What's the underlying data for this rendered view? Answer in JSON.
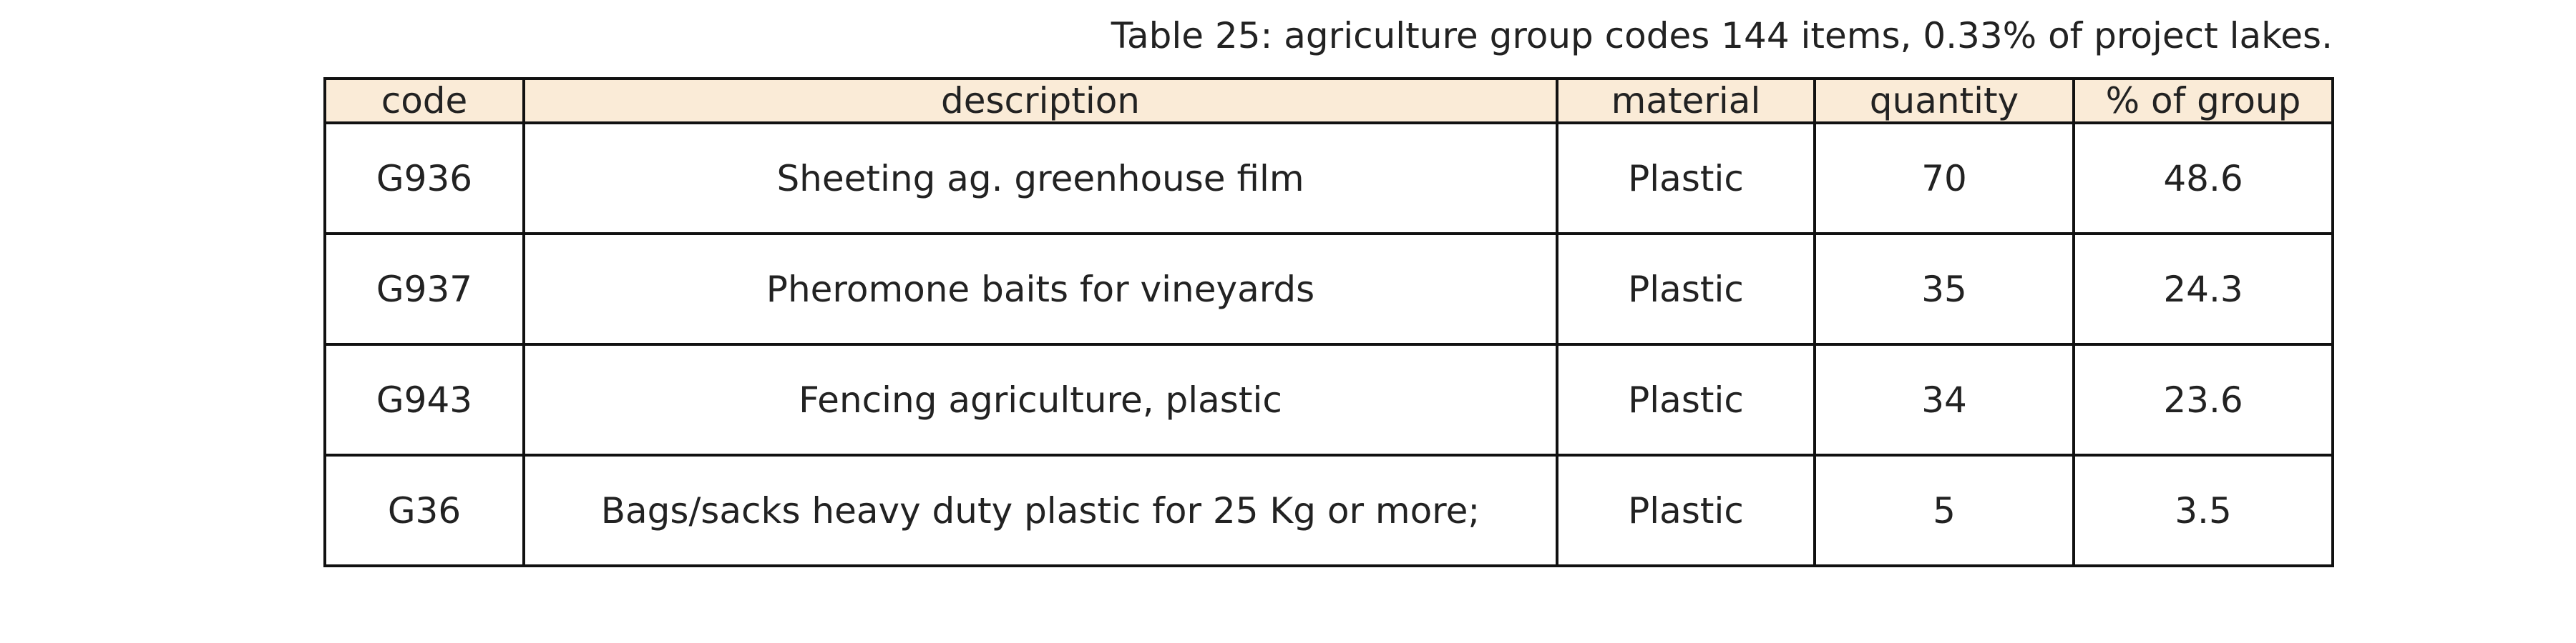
{
  "caption": "Table 25: agriculture group codes 144 items, 0.33% of project lakes.",
  "table": {
    "headers": [
      "code",
      "description",
      "material",
      "quantity",
      "% of group"
    ],
    "rows": [
      [
        "G936",
        "Sheeting ag. greenhouse film",
        "Plastic",
        "70",
        "48.6"
      ],
      [
        "G937",
        "Pheromone baits for vineyards",
        "Plastic",
        "35",
        "24.3"
      ],
      [
        "G943",
        "Fencing agriculture, plastic",
        "Plastic",
        "34",
        "23.6"
      ],
      [
        "G36",
        "Bags/sacks heavy duty plastic for 25 Kg or more;",
        "Plastic",
        "5",
        "3.5"
      ]
    ]
  },
  "colors": {
    "header_background": "#faebd7",
    "border": "#111111",
    "text": "#222222"
  }
}
